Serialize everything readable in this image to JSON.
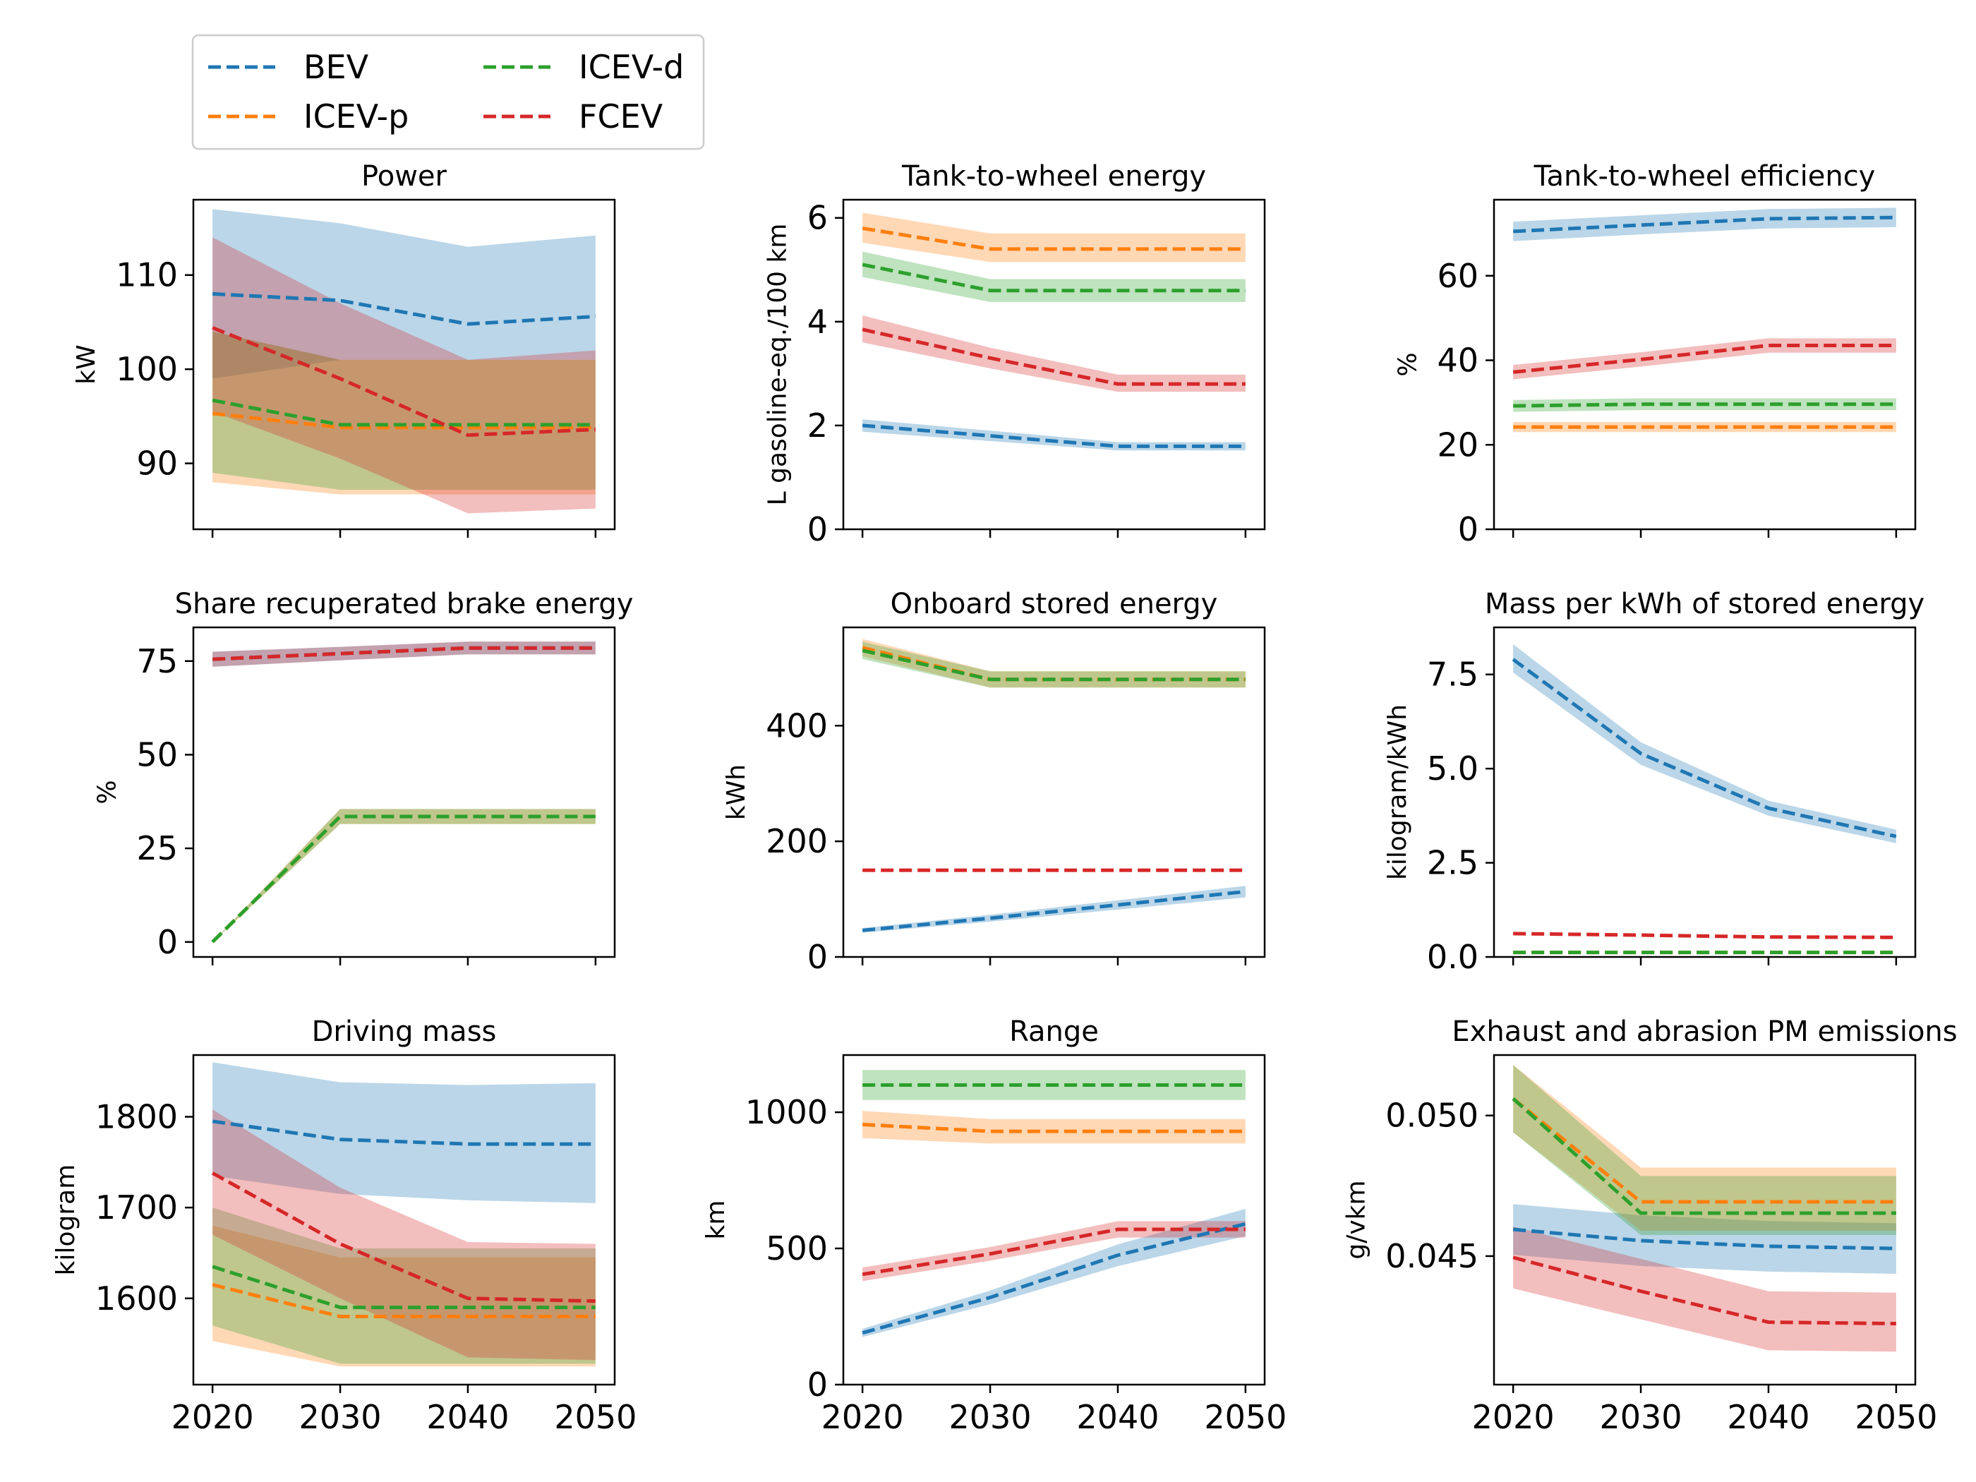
{
  "colors": {
    "BEV": "#1f77b4",
    "ICEV-p": "#ff7f0e",
    "ICEV-d": "#2ca02c",
    "FCEV": "#d62728"
  },
  "legend": {
    "items": [
      {
        "name": "BEV",
        "color": "#1f77b4"
      },
      {
        "name": "ICEV-p",
        "color": "#ff7f0e"
      },
      {
        "name": "ICEV-d",
        "color": "#2ca02c"
      },
      {
        "name": "FCEV",
        "color": "#d62728"
      }
    ],
    "line_style": "dashed",
    "placement": "above top-left panel"
  },
  "chart_data": [
    {
      "type": "line",
      "title": "Power",
      "ylabel": "kW",
      "x": [
        2020,
        2030,
        2040,
        2050
      ],
      "xlim": [
        2018.5,
        2051.5
      ],
      "ylim": [
        83,
        118
      ],
      "yticks": [
        90,
        100,
        110
      ],
      "show_xticklabels": false,
      "series": [
        {
          "name": "BEV",
          "values": [
            108,
            107.3,
            104.8,
            105.6
          ],
          "lower": [
            99,
            101,
            101,
            101
          ],
          "upper": [
            117,
            115.5,
            113,
            114.2
          ]
        },
        {
          "name": "ICEV-p",
          "values": [
            95.3,
            93.8,
            93.8,
            93.8
          ],
          "lower": [
            88,
            86.7,
            86.7,
            86.7
          ],
          "upper": [
            104,
            101,
            101,
            101
          ]
        },
        {
          "name": "ICEV-d",
          "values": [
            96.7,
            94.1,
            94.1,
            94.1
          ],
          "lower": [
            89,
            87.2,
            87.2,
            87.2
          ],
          "upper": [
            104,
            101,
            101,
            101
          ]
        },
        {
          "name": "FCEV",
          "values": [
            104.4,
            99,
            93,
            93.6
          ],
          "lower": [
            95.5,
            90.5,
            84.7,
            85.2
          ],
          "upper": [
            114,
            107,
            101,
            102
          ]
        }
      ]
    },
    {
      "type": "line",
      "title": "Tank-to-wheel energy",
      "ylabel": "L gasoline-eq./100 km",
      "x": [
        2020,
        2030,
        2040,
        2050
      ],
      "xlim": [
        2018.5,
        2051.5
      ],
      "ylim": [
        0,
        6.35
      ],
      "yticks": [
        0,
        2,
        4,
        6
      ],
      "show_xticklabels": false,
      "series": [
        {
          "name": "BEV",
          "values": [
            2.0,
            1.8,
            1.6,
            1.6
          ],
          "lower": [
            1.88,
            1.7,
            1.52,
            1.52
          ],
          "upper": [
            2.12,
            1.9,
            1.68,
            1.68
          ]
        },
        {
          "name": "ICEV-p",
          "values": [
            5.8,
            5.4,
            5.4,
            5.4
          ],
          "lower": [
            5.52,
            5.15,
            5.15,
            5.15
          ],
          "upper": [
            6.1,
            5.7,
            5.7,
            5.7
          ]
        },
        {
          "name": "ICEV-d",
          "values": [
            5.1,
            4.6,
            4.6,
            4.6
          ],
          "lower": [
            4.86,
            4.38,
            4.38,
            4.38
          ],
          "upper": [
            5.35,
            4.82,
            4.82,
            4.82
          ]
        },
        {
          "name": "FCEV",
          "values": [
            3.85,
            3.3,
            2.8,
            2.8
          ],
          "lower": [
            3.6,
            3.1,
            2.65,
            2.65
          ],
          "upper": [
            4.12,
            3.5,
            2.98,
            2.98
          ]
        }
      ]
    },
    {
      "type": "line",
      "title": "Tank-to-wheel efficiency",
      "ylabel": "%",
      "x": [
        2020,
        2030,
        2040,
        2050
      ],
      "xlim": [
        2018.5,
        2051.5
      ],
      "ylim": [
        0,
        78
      ],
      "yticks": [
        0,
        20,
        40,
        60
      ],
      "show_xticklabels": false,
      "series": [
        {
          "name": "BEV",
          "values": [
            70.5,
            72,
            73.5,
            73.8
          ],
          "lower": [
            68.2,
            69.8,
            71.2,
            71.5
          ],
          "upper": [
            72.8,
            74.3,
            75.8,
            76.1
          ]
        },
        {
          "name": "ICEV-p",
          "values": [
            24.2,
            24.2,
            24.2,
            24.2
          ],
          "lower": [
            23.0,
            23.0,
            23.0,
            23.0
          ],
          "upper": [
            25.4,
            25.4,
            25.4,
            25.4
          ]
        },
        {
          "name": "ICEV-d",
          "values": [
            29.2,
            29.6,
            29.6,
            29.6
          ],
          "lower": [
            27.8,
            28.2,
            28.2,
            28.2
          ],
          "upper": [
            30.6,
            31.0,
            31.0,
            31.0
          ]
        },
        {
          "name": "FCEV",
          "values": [
            37.2,
            40.2,
            43.5,
            43.5
          ],
          "lower": [
            35.5,
            38.5,
            41.8,
            41.8
          ],
          "upper": [
            38.9,
            41.9,
            45.2,
            45.2
          ]
        }
      ]
    },
    {
      "type": "line",
      "title": "Share recuperated brake energy",
      "ylabel": "%",
      "x": [
        2020,
        2030,
        2040,
        2050
      ],
      "xlim": [
        2018.5,
        2051.5
      ],
      "ylim": [
        -4,
        84
      ],
      "yticks": [
        0,
        25,
        50,
        75
      ],
      "show_xticklabels": false,
      "series": [
        {
          "name": "BEV",
          "values": [
            75.5,
            77,
            78.5,
            78.5
          ],
          "lower": [
            73.5,
            75.2,
            76.8,
            76.8
          ],
          "upper": [
            77.5,
            78.8,
            80.2,
            80.2
          ]
        },
        {
          "name": "ICEV-p",
          "values": [
            0,
            33.5,
            33.5,
            33.5
          ],
          "lower": [
            0,
            31.5,
            31.5,
            31.5
          ],
          "upper": [
            0,
            35.5,
            35.5,
            35.5
          ]
        },
        {
          "name": "ICEV-d",
          "values": [
            0,
            33.5,
            33.5,
            33.5
          ],
          "lower": [
            0,
            31.5,
            31.5,
            31.5
          ],
          "upper": [
            0,
            35.5,
            35.5,
            35.5
          ]
        },
        {
          "name": "FCEV",
          "values": [
            75.5,
            77,
            78.5,
            78.5
          ],
          "lower": [
            73.5,
            75.2,
            76.8,
            76.8
          ],
          "upper": [
            77.5,
            78.8,
            80.2,
            80.2
          ]
        }
      ]
    },
    {
      "type": "line",
      "title": "Onboard stored energy",
      "ylabel": "kWh",
      "x": [
        2020,
        2030,
        2040,
        2050
      ],
      "xlim": [
        2018.5,
        2051.5
      ],
      "ylim": [
        0,
        570
      ],
      "yticks": [
        0,
        200,
        400
      ],
      "show_xticklabels": false,
      "series": [
        {
          "name": "BEV",
          "values": [
            46,
            67,
            90,
            113
          ],
          "lower": [
            42,
            61,
            82,
            103
          ],
          "upper": [
            50,
            73,
            98,
            123
          ]
        },
        {
          "name": "ICEV-p",
          "values": [
            535,
            480,
            480,
            480
          ],
          "lower": [
            520,
            466,
            466,
            466
          ],
          "upper": [
            550,
            494,
            494,
            494
          ]
        },
        {
          "name": "ICEV-d",
          "values": [
            530,
            480,
            480,
            480
          ],
          "lower": [
            515,
            466,
            466,
            466
          ],
          "upper": [
            545,
            494,
            494,
            494
          ]
        },
        {
          "name": "FCEV",
          "values": [
            150,
            150,
            150,
            150
          ],
          "lower": [
            150,
            150,
            150,
            150
          ],
          "upper": [
            150,
            150,
            150,
            150
          ]
        }
      ]
    },
    {
      "type": "line",
      "title": "Mass per kWh of stored energy",
      "ylabel": "kilogram/kWh",
      "x": [
        2020,
        2030,
        2040,
        2050
      ],
      "xlim": [
        2018.5,
        2051.5
      ],
      "ylim": [
        0,
        8.75
      ],
      "yticks": [
        0.0,
        2.5,
        5.0,
        7.5
      ],
      "yticklabels": [
        "0.0",
        "2.5",
        "5.0",
        "7.5"
      ],
      "show_xticklabels": false,
      "series": [
        {
          "name": "BEV",
          "values": [
            7.9,
            5.4,
            3.95,
            3.2
          ],
          "lower": [
            7.55,
            5.1,
            3.75,
            3.02
          ],
          "upper": [
            8.3,
            5.7,
            4.15,
            3.38
          ]
        },
        {
          "name": "ICEV-p",
          "values": [
            0.12,
            0.12,
            0.12,
            0.12
          ],
          "lower": [
            0.12,
            0.12,
            0.12,
            0.12
          ],
          "upper": [
            0.12,
            0.12,
            0.12,
            0.12
          ]
        },
        {
          "name": "ICEV-d",
          "values": [
            0.12,
            0.12,
            0.12,
            0.12
          ],
          "lower": [
            0.12,
            0.12,
            0.12,
            0.12
          ],
          "upper": [
            0.12,
            0.12,
            0.12,
            0.12
          ]
        },
        {
          "name": "FCEV",
          "values": [
            0.62,
            0.58,
            0.53,
            0.52
          ],
          "lower": [
            0.62,
            0.58,
            0.53,
            0.52
          ],
          "upper": [
            0.62,
            0.58,
            0.53,
            0.52
          ]
        }
      ]
    },
    {
      "type": "line",
      "title": "Driving mass",
      "ylabel": "kilogram",
      "x": [
        2020,
        2030,
        2040,
        2050
      ],
      "xlim": [
        2018.5,
        2051.5
      ],
      "ylim": [
        1505,
        1868
      ],
      "yticks": [
        1600,
        1700,
        1800
      ],
      "show_xticklabels": true,
      "xticklabels": [
        "2020",
        "2030",
        "2040",
        "2050"
      ],
      "series": [
        {
          "name": "BEV",
          "values": [
            1795,
            1775,
            1770,
            1770
          ],
          "lower": [
            1735,
            1715,
            1708,
            1705
          ],
          "upper": [
            1860,
            1838,
            1835,
            1837
          ]
        },
        {
          "name": "ICEV-p",
          "values": [
            1615,
            1580,
            1580,
            1580
          ],
          "lower": [
            1553,
            1525,
            1525,
            1525
          ],
          "upper": [
            1680,
            1645,
            1645,
            1645
          ]
        },
        {
          "name": "ICEV-d",
          "values": [
            1635,
            1590,
            1590,
            1590
          ],
          "lower": [
            1570,
            1528,
            1528,
            1528
          ],
          "upper": [
            1700,
            1655,
            1655,
            1655
          ]
        },
        {
          "name": "FCEV",
          "values": [
            1738,
            1660,
            1600,
            1597
          ],
          "lower": [
            1670,
            1600,
            1535,
            1532
          ],
          "upper": [
            1808,
            1722,
            1662,
            1660
          ]
        }
      ]
    },
    {
      "type": "line",
      "title": "Range",
      "ylabel": "km",
      "x": [
        2020,
        2030,
        2040,
        2050
      ],
      "xlim": [
        2018.5,
        2051.5
      ],
      "ylim": [
        0,
        1210
      ],
      "yticks": [
        0,
        500,
        1000
      ],
      "show_xticklabels": true,
      "xticklabels": [
        "2020",
        "2030",
        "2040",
        "2050"
      ],
      "series": [
        {
          "name": "BEV",
          "values": [
            190,
            320,
            475,
            590
          ],
          "lower": [
            175,
            295,
            435,
            545
          ],
          "upper": [
            205,
            345,
            515,
            645
          ]
        },
        {
          "name": "ICEV-p",
          "values": [
            955,
            930,
            930,
            930
          ],
          "lower": [
            905,
            885,
            885,
            885
          ],
          "upper": [
            1005,
            975,
            975,
            975
          ]
        },
        {
          "name": "ICEV-d",
          "values": [
            1100,
            1100,
            1100,
            1100
          ],
          "lower": [
            1045,
            1045,
            1045,
            1045
          ],
          "upper": [
            1155,
            1155,
            1155,
            1155
          ]
        },
        {
          "name": "FCEV",
          "values": [
            405,
            480,
            570,
            570
          ],
          "lower": [
            380,
            455,
            540,
            540
          ],
          "upper": [
            430,
            505,
            600,
            600
          ]
        }
      ]
    },
    {
      "type": "line",
      "title": "Exhaust and abrasion PM emissions",
      "ylabel": "g/vkm",
      "x": [
        2020,
        2030,
        2040,
        2050
      ],
      "xlim": [
        2018.5,
        2051.5
      ],
      "ylim": [
        0.04043,
        0.05215
      ],
      "yticks": [
        0.045,
        0.05
      ],
      "yticklabels": [
        "0.045",
        "0.050"
      ],
      "show_xticklabels": true,
      "xticklabels": [
        "2020",
        "2030",
        "2040",
        "2050"
      ],
      "series": [
        {
          "name": "BEV",
          "values": [
            0.04595,
            0.04555,
            0.04535,
            0.04527
          ],
          "lower": [
            0.04505,
            0.04465,
            0.04445,
            0.04437
          ],
          "upper": [
            0.04685,
            0.04645,
            0.04625,
            0.04617
          ]
        },
        {
          "name": "ICEV-p",
          "values": [
            0.0506,
            0.04693,
            0.04693,
            0.04693
          ],
          "lower": [
            0.0494,
            0.0459,
            0.0459,
            0.0459
          ],
          "upper": [
            0.0518,
            0.04815,
            0.04815,
            0.04815
          ]
        },
        {
          "name": "ICEV-d",
          "values": [
            0.0506,
            0.04653,
            0.04653,
            0.04653
          ],
          "lower": [
            0.0494,
            0.04575,
            0.04575,
            0.04575
          ],
          "upper": [
            0.0518,
            0.04785,
            0.04785,
            0.04785
          ]
        },
        {
          "name": "FCEV",
          "values": [
            0.04495,
            0.04375,
            0.04265,
            0.0426
          ],
          "lower": [
            0.04385,
            0.04275,
            0.04165,
            0.0416
          ],
          "upper": [
            0.04605,
            0.0449,
            0.04375,
            0.0437
          ]
        }
      ]
    }
  ]
}
